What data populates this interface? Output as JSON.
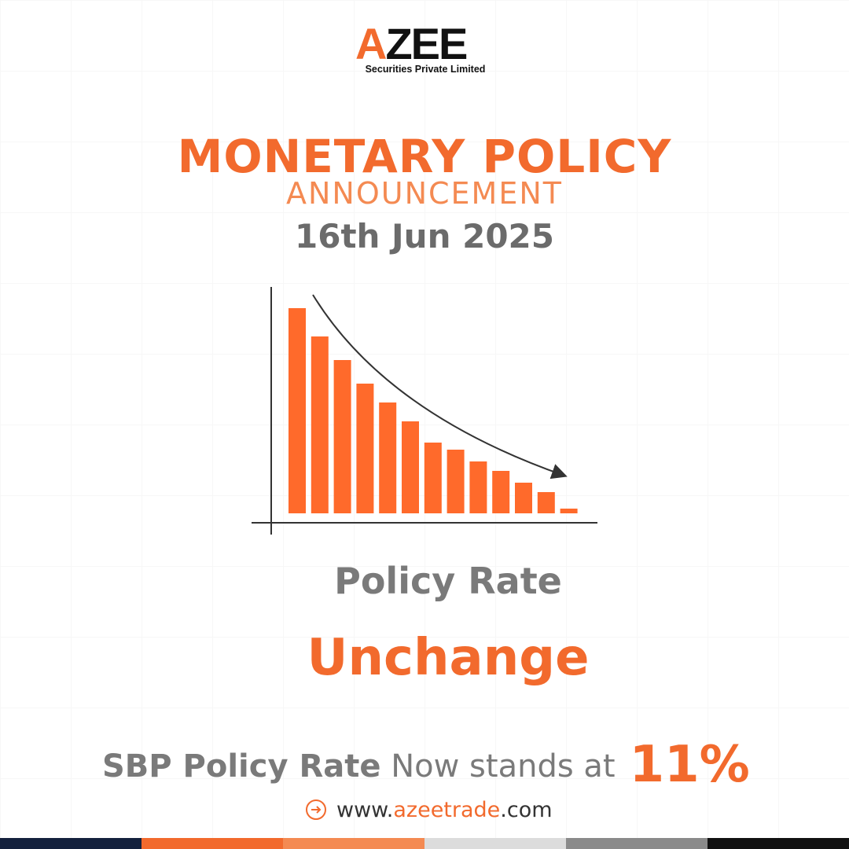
{
  "logo": {
    "letter_a": "A",
    "letters_rest": "ZEE",
    "subtitle": "Securities Private Limited"
  },
  "heading": {
    "line1": "MONETARY POLICY",
    "line2": "ANNOUNCEMENT",
    "date": "16th Jun 2025"
  },
  "chart_data": {
    "type": "bar",
    "values": [
      87,
      75,
      65,
      55,
      47,
      39,
      30,
      27,
      22,
      18,
      13,
      9,
      2
    ],
    "trend": "decreasing",
    "colors": {
      "bars": "#ff6a2b",
      "axis": "#333333",
      "arrow": "#333333"
    }
  },
  "policy": {
    "label": "Policy Rate",
    "status": "Unchange",
    "sbp_bold": "SBP Policy Rate",
    "sbp_text": " Now stands at",
    "rate_value": "11%"
  },
  "website": {
    "prefix": "www.",
    "accent": "azeetrade",
    "suffix": ".com",
    "icon": "arrow-right-circle-icon"
  },
  "colors": {
    "accent": "#f26a2d",
    "gray": "#7a7a7a"
  },
  "footer_colors": [
    "#14213d",
    "#f26a2d",
    "#f48a52",
    "#dcdcdc",
    "#8a8a8a",
    "#111111"
  ]
}
